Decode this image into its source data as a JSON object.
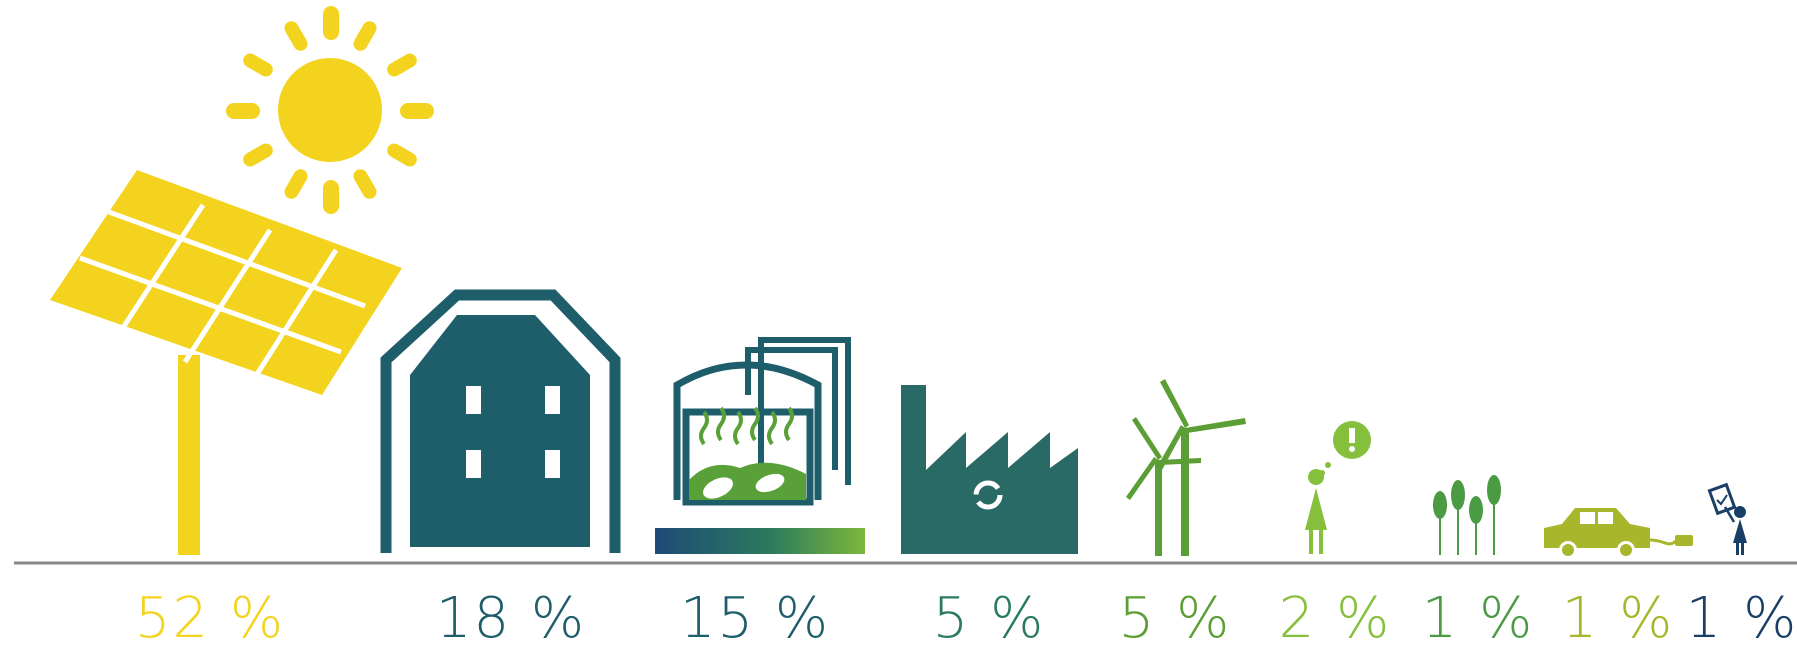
{
  "chart_data": {
    "type": "pictogram",
    "title": "",
    "categories": [
      {
        "icon": "solar-panel-icon",
        "label": "52 %",
        "value": 52,
        "color": "#f3d31d"
      },
      {
        "icon": "house-icon",
        "label": "18 %",
        "value": 18,
        "color": "#1e5e6b"
      },
      {
        "icon": "biogas-plant-icon",
        "label": "15 %",
        "value": 15,
        "color": "#1e5e6b"
      },
      {
        "icon": "factory-icon",
        "label": "5 %",
        "value": 5,
        "color": "#2a7a63"
      },
      {
        "icon": "wind-turbine-icon",
        "label": "5 %",
        "value": 5,
        "color": "#5a9e35"
      },
      {
        "icon": "person-idea-icon",
        "label": "2 %",
        "value": 2,
        "color": "#86bf3c"
      },
      {
        "icon": "wheat-icon",
        "label": "1 %",
        "value": 1,
        "color": "#4b9a44"
      },
      {
        "icon": "electric-car-icon",
        "label": "1 %",
        "value": 1,
        "color": "#a8b62c"
      },
      {
        "icon": "person-document-icon",
        "label": "1 %",
        "value": 1,
        "color": "#1a3f66"
      }
    ]
  },
  "colors": {
    "baseline": "#8a8a8a",
    "sun": "#f3d31d",
    "teal": "#1e5e6b",
    "green": "#5aa038"
  }
}
